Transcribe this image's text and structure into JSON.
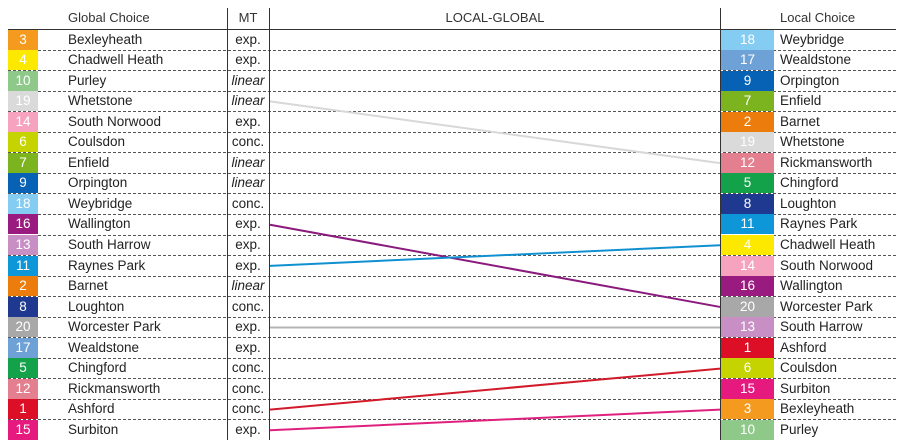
{
  "headers": {
    "global": "Global Choice",
    "mt": "MT",
    "local_global": "LOCAL-GLOBAL",
    "local": "Local Choice"
  },
  "global_rows": [
    {
      "rank": "3",
      "name": "Bexleyheath",
      "mt": "exp.",
      "italic": false,
      "color": "#f39a1f"
    },
    {
      "rank": "4",
      "name": "Chadwell Heath",
      "mt": "exp.",
      "italic": false,
      "color": "#fde800"
    },
    {
      "rank": "10",
      "name": "Purley",
      "mt": "linear",
      "italic": true,
      "color": "#8fc98a"
    },
    {
      "rank": "19",
      "name": "Whetstone",
      "mt": "linear",
      "italic": true,
      "color": "#dadada"
    },
    {
      "rank": "14",
      "name": "South Norwood",
      "mt": "exp.",
      "italic": false,
      "color": "#f6a3c0"
    },
    {
      "rank": "6",
      "name": "Coulsdon",
      "mt": "conc.",
      "italic": false,
      "color": "#c5d400"
    },
    {
      "rank": "7",
      "name": "Enfield",
      "mt": "linear",
      "italic": true,
      "color": "#7cb41f"
    },
    {
      "rank": "9",
      "name": "Orpington",
      "mt": "linear",
      "italic": true,
      "color": "#0762b5"
    },
    {
      "rank": "18",
      "name": "Weybridge",
      "mt": "conc.",
      "italic": false,
      "color": "#84ccf1"
    },
    {
      "rank": "16",
      "name": "Wallington",
      "mt": "exp.",
      "italic": false,
      "color": "#9a1b7f"
    },
    {
      "rank": "13",
      "name": "South Harrow",
      "mt": "exp.",
      "italic": false,
      "color": "#c88fc4"
    },
    {
      "rank": "11",
      "name": "Raynes Park",
      "mt": "exp.",
      "italic": false,
      "color": "#0e97d8"
    },
    {
      "rank": "2",
      "name": "Barnet",
      "mt": "linear",
      "italic": true,
      "color": "#ec7d0c"
    },
    {
      "rank": "8",
      "name": "Loughton",
      "mt": "conc.",
      "italic": false,
      "color": "#1f3990"
    },
    {
      "rank": "20",
      "name": "Worcester Park",
      "mt": "exp.",
      "italic": false,
      "color": "#a8a8a8"
    },
    {
      "rank": "17",
      "name": "Wealdstone",
      "mt": "exp.",
      "italic": false,
      "color": "#6ea2d6"
    },
    {
      "rank": "5",
      "name": "Chingford",
      "mt": "conc.",
      "italic": false,
      "color": "#13a24a"
    },
    {
      "rank": "12",
      "name": "Rickmansworth",
      "mt": "conc.",
      "italic": false,
      "color": "#e37f8e"
    },
    {
      "rank": "1",
      "name": "Ashford",
      "mt": "conc.",
      "italic": false,
      "color": "#dc0f27"
    },
    {
      "rank": "15",
      "name": "Surbiton",
      "mt": "exp.",
      "italic": false,
      "color": "#e6197f"
    }
  ],
  "local_rows": [
    {
      "rank": "18",
      "name": "Weybridge",
      "color": "#84ccf1"
    },
    {
      "rank": "17",
      "name": "Wealdstone",
      "color": "#6ea2d6"
    },
    {
      "rank": "9",
      "name": "Orpington",
      "color": "#0762b5"
    },
    {
      "rank": "7",
      "name": "Enfield",
      "color": "#7cb41f"
    },
    {
      "rank": "2",
      "name": "Barnet",
      "color": "#ec7d0c"
    },
    {
      "rank": "19",
      "name": "Whetstone",
      "color": "#dadada"
    },
    {
      "rank": "12",
      "name": "Rickmansworth",
      "color": "#e37f8e"
    },
    {
      "rank": "5",
      "name": "Chingford",
      "color": "#13a24a"
    },
    {
      "rank": "8",
      "name": "Loughton",
      "color": "#1f3990"
    },
    {
      "rank": "11",
      "name": "Raynes Park",
      "color": "#0e97d8"
    },
    {
      "rank": "4",
      "name": "Chadwell Heath",
      "color": "#fde800"
    },
    {
      "rank": "14",
      "name": "South Norwood",
      "color": "#f6a3c0"
    },
    {
      "rank": "16",
      "name": "Wallington",
      "color": "#9a1b7f"
    },
    {
      "rank": "20",
      "name": "Worcester Park",
      "color": "#a8a8a8"
    },
    {
      "rank": "13",
      "name": "South Harrow",
      "color": "#c88fc4"
    },
    {
      "rank": "1",
      "name": "Ashford",
      "color": "#dc0f27"
    },
    {
      "rank": "6",
      "name": "Coulsdon",
      "color": "#c5d400"
    },
    {
      "rank": "15",
      "name": "Surbiton",
      "color": "#e6197f"
    },
    {
      "rank": "3",
      "name": "Bexleyheath",
      "color": "#f39a1f"
    },
    {
      "rank": "10",
      "name": "Purley",
      "color": "#8fc98a"
    }
  ],
  "links": [
    {
      "from_global_row": 3,
      "to_local_row": 6,
      "color": "#d8d8d8"
    },
    {
      "from_global_row": 9,
      "to_local_row": 13,
      "color": "#8a1a7c"
    },
    {
      "from_global_row": 11,
      "to_local_row": 10,
      "color": "#1090d0"
    },
    {
      "from_global_row": 14,
      "to_local_row": 14,
      "color": "#b4b4b4"
    },
    {
      "from_global_row": 18,
      "to_local_row": 16,
      "color": "#d11a2a"
    },
    {
      "from_global_row": 19,
      "to_local_row": 18,
      "color": "#e0207e"
    }
  ]
}
